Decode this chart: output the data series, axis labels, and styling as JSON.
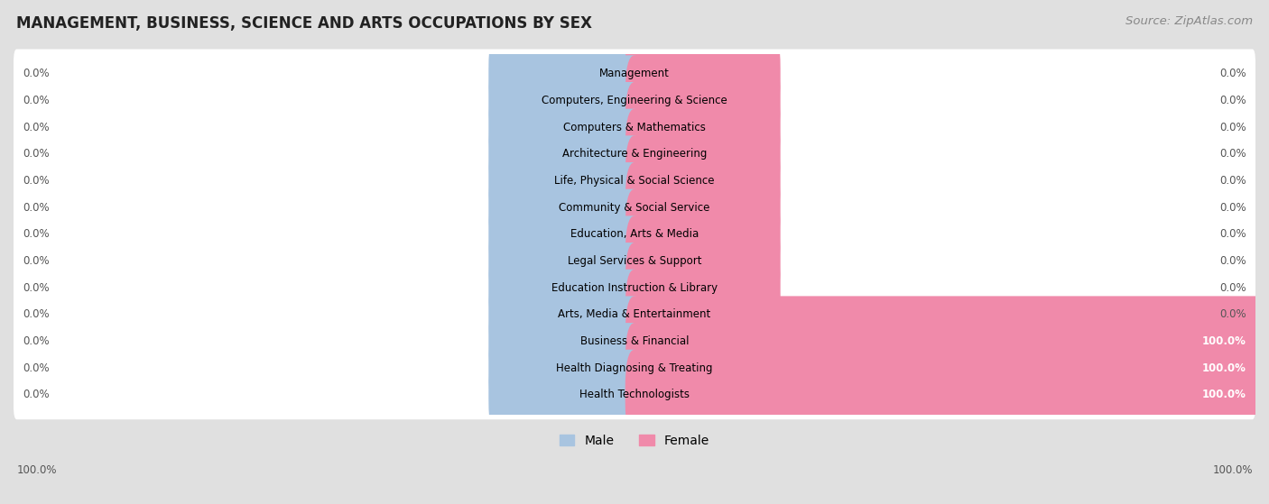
{
  "title": "MANAGEMENT, BUSINESS, SCIENCE AND ARTS OCCUPATIONS BY SEX",
  "source": "Source: ZipAtlas.com",
  "categories": [
    "Management",
    "Computers, Engineering & Science",
    "Computers & Mathematics",
    "Architecture & Engineering",
    "Life, Physical & Social Science",
    "Community & Social Service",
    "Education, Arts & Media",
    "Legal Services & Support",
    "Education Instruction & Library",
    "Arts, Media & Entertainment",
    "Business & Financial",
    "Health Diagnosing & Treating",
    "Health Technologists"
  ],
  "male_values": [
    0.0,
    0.0,
    0.0,
    0.0,
    0.0,
    0.0,
    0.0,
    0.0,
    0.0,
    0.0,
    0.0,
    0.0,
    0.0
  ],
  "female_values": [
    0.0,
    0.0,
    0.0,
    0.0,
    0.0,
    0.0,
    0.0,
    0.0,
    0.0,
    0.0,
    100.0,
    100.0,
    100.0
  ],
  "male_color": "#a8c4e0",
  "female_color": "#f08aaa",
  "male_label": "Male",
  "female_label": "Female",
  "title_fontsize": 12,
  "source_fontsize": 9.5,
  "label_fontsize": 8.5,
  "bar_label_fontsize": 8.5,
  "legend_fontsize": 10,
  "stub_size": 22,
  "xlim_left": -100,
  "xlim_right": 100
}
